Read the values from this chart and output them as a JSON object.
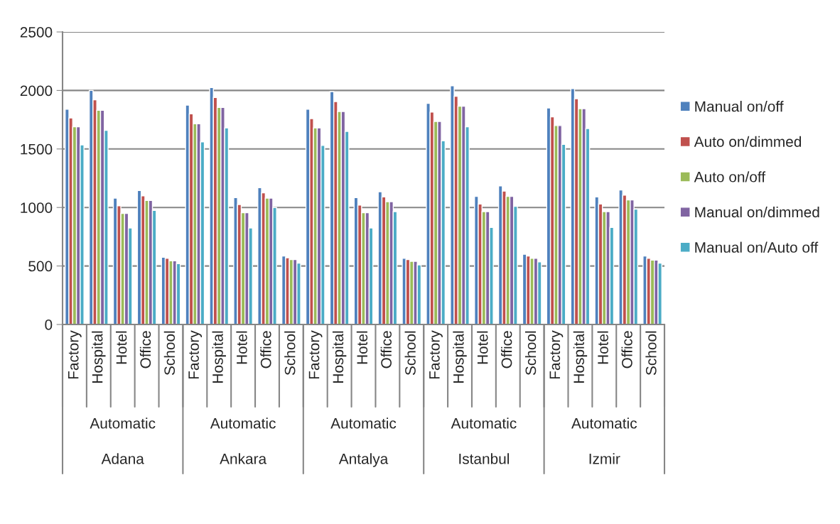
{
  "chart_data": {
    "type": "bar",
    "categories": [
      "Factory",
      "Hospital",
      "Hotel",
      "Office",
      "School",
      "Factory",
      "Hospital",
      "Hotel",
      "Office",
      "School",
      "Factory",
      "Hospital",
      "Hotel",
      "Office",
      "School",
      "Factory",
      "Hospital",
      "Hotel",
      "Office",
      "School",
      "Factory",
      "Hospital",
      "Hotel",
      "Office",
      "School"
    ],
    "annotations": [
      "Automatic",
      "Automatic",
      "Automatic",
      "Automatic",
      "Automatic",
      "Adana",
      "Ankara",
      "Antalya",
      "Istanbul",
      "Izmir"
    ],
    "series": [
      {
        "name": "Manual on/off",
        "color": "#4f81bd",
        "values": [
          1840,
          2000,
          1080,
          1145,
          575,
          1875,
          2025,
          1085,
          1170,
          585,
          1840,
          1990,
          1085,
          1135,
          565,
          1890,
          2040,
          1095,
          1185,
          600,
          1850,
          2015,
          1090,
          1150,
          585
        ]
      },
      {
        "name": "Auto on/dimmed",
        "color": "#c0504d",
        "values": [
          1765,
          1920,
          1015,
          1100,
          565,
          1800,
          1940,
          1025,
          1125,
          570,
          1760,
          1905,
          1020,
          1090,
          555,
          1815,
          1950,
          1030,
          1140,
          585,
          1775,
          1930,
          1030,
          1105,
          565
        ]
      },
      {
        "name": "Auto on/off",
        "color": "#9bbb59",
        "values": [
          1690,
          1830,
          950,
          1060,
          545,
          1715,
          1855,
          955,
          1080,
          555,
          1680,
          1820,
          955,
          1050,
          540,
          1735,
          1865,
          965,
          1095,
          565,
          1700,
          1845,
          965,
          1065,
          550
        ]
      },
      {
        "name": "Manual on/dimmed",
        "color": "#8064a2",
        "values": [
          1690,
          1830,
          950,
          1060,
          545,
          1715,
          1855,
          955,
          1080,
          555,
          1680,
          1820,
          955,
          1050,
          540,
          1735,
          1865,
          965,
          1095,
          565,
          1700,
          1845,
          965,
          1065,
          550
        ]
      },
      {
        "name": "Manual on/Auto off",
        "color": "#4bacc6",
        "values": [
          1535,
          1660,
          825,
          975,
          520,
          1560,
          1680,
          825,
          1000,
          525,
          1530,
          1650,
          825,
          965,
          510,
          1570,
          1690,
          830,
          1010,
          535,
          1540,
          1675,
          830,
          985,
          525
        ]
      }
    ],
    "ylim": [
      0,
      2500
    ],
    "yticks": [
      0,
      500,
      1000,
      1500,
      2000,
      2500
    ],
    "grid": "y",
    "legend": "right"
  }
}
